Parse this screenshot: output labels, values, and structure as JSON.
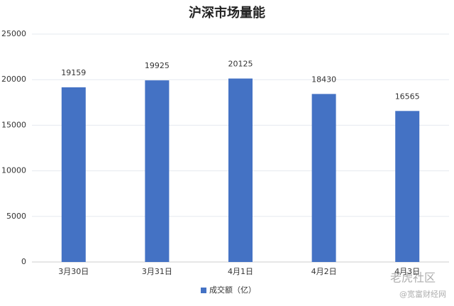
{
  "chart_data": {
    "type": "bar",
    "title": "沪深市场量能",
    "categories": [
      "3月30日",
      "3月31日",
      "4月1日",
      "4月2日",
      "4月3日"
    ],
    "series": [
      {
        "name": "成交额（亿）",
        "color": "#4472c4",
        "values": [
          19159,
          19925,
          20125,
          18430,
          16565
        ]
      }
    ],
    "ylim": [
      0,
      25000
    ],
    "yticks": [
      0,
      5000,
      10000,
      15000,
      20000,
      25000
    ],
    "grid": true,
    "legend": "bottom",
    "watermark": [
      "老虎社区",
      "@宽富财经网"
    ]
  }
}
